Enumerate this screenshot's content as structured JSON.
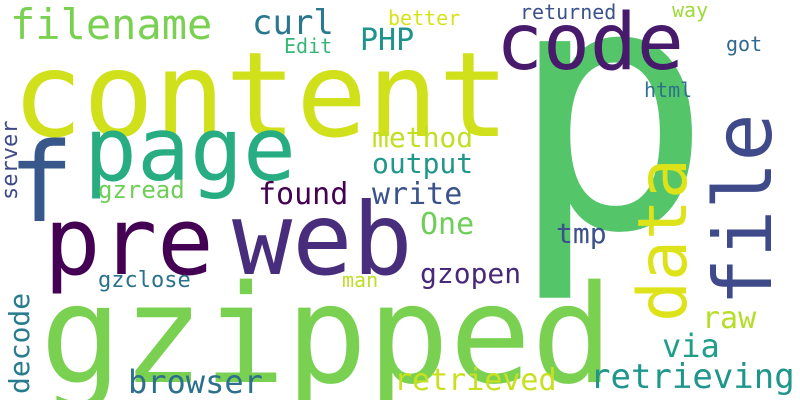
{
  "words": [
    {
      "text": "p",
      "color": "#54c568"
    },
    {
      "text": "gzipped",
      "color": "#7ad151"
    },
    {
      "text": "content",
      "color": "#d0e11c"
    },
    {
      "text": "web",
      "color": "#472d7b"
    },
    {
      "text": "pre",
      "color": "#440154"
    },
    {
      "text": "page",
      "color": "#27ad81"
    },
    {
      "text": "code",
      "color": "#481a6c"
    },
    {
      "text": "f",
      "color": "#38588c"
    },
    {
      "text": "file",
      "color": "#3e4a89"
    },
    {
      "text": "data",
      "color": "#dde318"
    },
    {
      "text": "filename",
      "color": "#7ad151"
    },
    {
      "text": "curl",
      "color": "#2a788e"
    },
    {
      "text": "PHP",
      "color": "#1f948c"
    },
    {
      "text": "Edit",
      "color": "#35b779"
    },
    {
      "text": "better",
      "color": "#d8e219"
    },
    {
      "text": "returned",
      "color": "#3b528b"
    },
    {
      "text": "way",
      "color": "#a0da39"
    },
    {
      "text": "got",
      "color": "#31688e"
    },
    {
      "text": "html",
      "color": "#2c728e"
    },
    {
      "text": "method",
      "color": "#c2df23"
    },
    {
      "text": "output",
      "color": "#1f978b"
    },
    {
      "text": "found",
      "color": "#440154"
    },
    {
      "text": "write",
      "color": "#3b528b"
    },
    {
      "text": "gzread",
      "color": "#6ece58"
    },
    {
      "text": "One",
      "color": "#6ece58"
    },
    {
      "text": "tmp",
      "color": "#3b528b"
    },
    {
      "text": "server",
      "color": "#3e4a89"
    },
    {
      "text": "gzopen",
      "color": "#482878"
    },
    {
      "text": "gzclose",
      "color": "#2c728e"
    },
    {
      "text": "man",
      "color": "#bddf26"
    },
    {
      "text": "raw",
      "color": "#b5de2b"
    },
    {
      "text": "via",
      "color": "#1f9e89"
    },
    {
      "text": "decode",
      "color": "#287c8e"
    },
    {
      "text": "browser",
      "color": "#2d708e"
    },
    {
      "text": "retrieved",
      "color": "#c8e020"
    },
    {
      "text": "retrieving",
      "color": "#1f968b"
    }
  ]
}
